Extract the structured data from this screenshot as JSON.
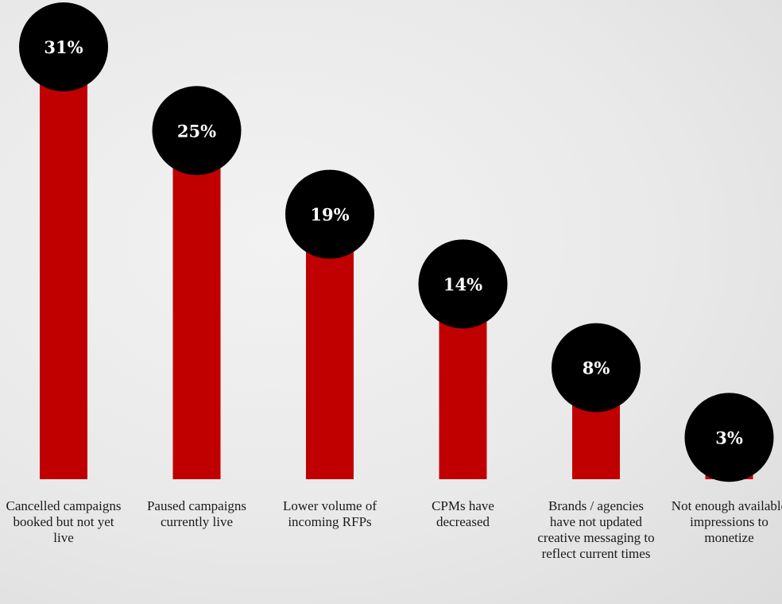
{
  "chart_data": {
    "type": "bar",
    "categories": [
      "Cancelled campaigns booked but not yet live",
      "Paused campaigns currently live",
      "Lower volume of incoming RFPs",
      "CPMs have decreased",
      "Brands / agencies have not updated creative messaging to reflect current times",
      "Not enough available impressions to monetize"
    ],
    "values": [
      31,
      25,
      19,
      14,
      8,
      3
    ],
    "data_labels": [
      "31%",
      "25%",
      "19%",
      "14%",
      "8%",
      "3%"
    ],
    "unit": "%",
    "grid": false,
    "legend": "none",
    "colors": {
      "bar": "#c00000",
      "bubble": "#000000",
      "bubble_text": "#ffffff"
    }
  }
}
